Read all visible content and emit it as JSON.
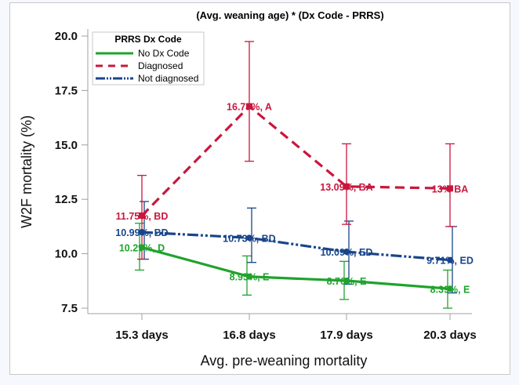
{
  "chart_data": {
    "type": "line",
    "title": "(Avg. weaning age) * (Dx Code - PRRS)",
    "xlabel": "Avg. pre-weaning mortality",
    "ylabel": "W2F mortality (%)",
    "categories": [
      "15.3 days",
      "16.8 days",
      "17.9 days",
      "20.3 days"
    ],
    "ylim": [
      7.5,
      20.0
    ],
    "yticks": [
      "7.5",
      "10.0",
      "12.5",
      "15.0",
      "17.5",
      "20.0"
    ],
    "ytick_values": [
      7.5,
      10.0,
      12.5,
      15.0,
      17.5,
      20.0
    ],
    "grid": false,
    "legend": {
      "title": "PRRS Dx Code",
      "placement": "top-left",
      "entries": [
        "No Dx Code",
        "Diagnosed",
        "Not diagnosed"
      ]
    },
    "series": [
      {
        "name": "No Dx Code",
        "color": "#1fa32c",
        "style": "solid",
        "values": [
          10.29,
          8.95,
          8.76,
          8.39
        ],
        "ci_low": [
          9.25,
          8.1,
          7.9,
          7.5
        ],
        "ci_high": [
          11.4,
          9.9,
          9.65,
          9.25
        ],
        "labels": [
          "10.29%,  D",
          "8.95%, E",
          "8.76%, E",
          "8.39%, E"
        ]
      },
      {
        "name": "Diagnosed",
        "color": "#c8173e",
        "style": "dashed",
        "values": [
          11.75,
          16.77,
          13.09,
          13.0
        ],
        "ci_low": [
          9.75,
          14.25,
          11.35,
          11.25
        ],
        "ci_high": [
          13.6,
          19.75,
          15.05,
          15.05
        ],
        "labels": [
          "11.75%, BD",
          "16.77%,  A",
          "13.09%, BA",
          "13% BA"
        ]
      },
      {
        "name": "Not diagnosed",
        "color": "#18458a",
        "style": "dash-dot-dot",
        "values": [
          10.99,
          10.73,
          10.09,
          9.71
        ],
        "ci_low": [
          9.75,
          9.6,
          8.6,
          8.2
        ],
        "ci_high": [
          12.4,
          12.1,
          11.5,
          11.25
        ],
        "labels": [
          "10.99%, BD",
          "10.73%, BD",
          "10.09%, ED",
          "9.71%, ED"
        ]
      }
    ]
  }
}
